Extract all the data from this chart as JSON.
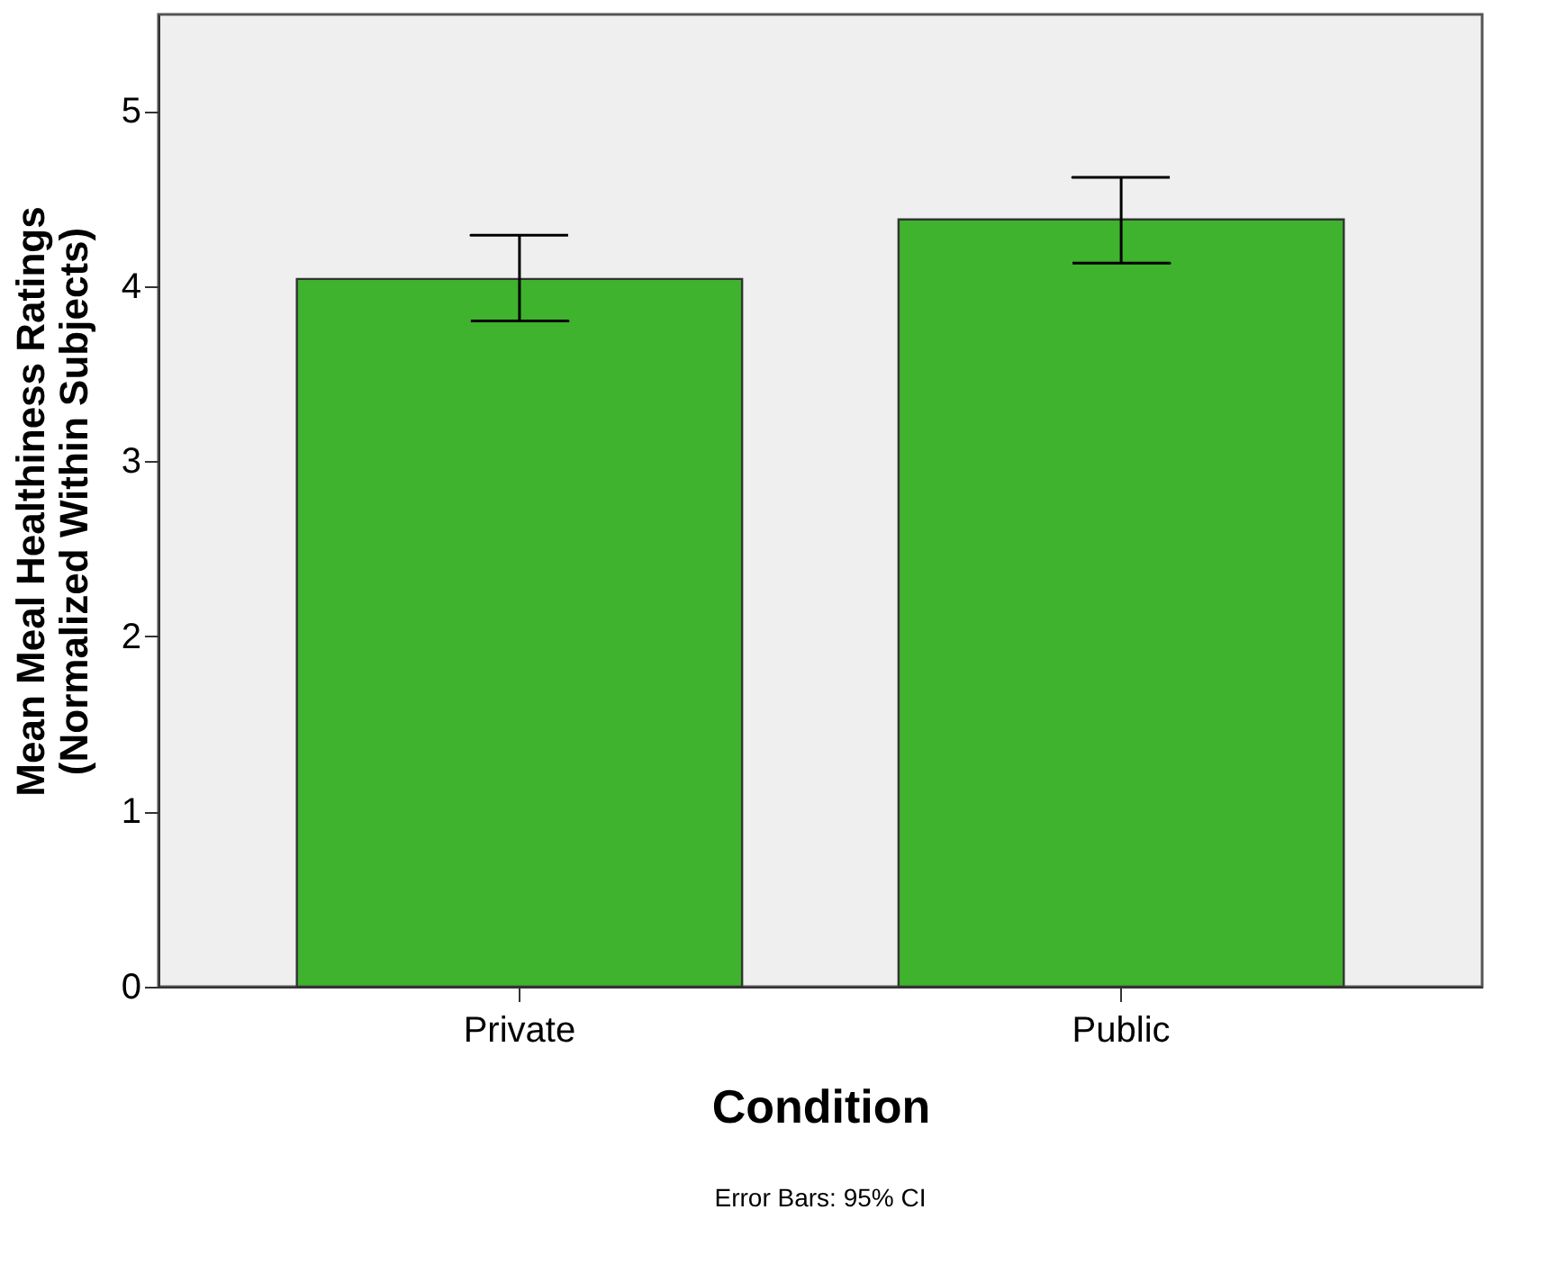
{
  "chart_data": {
    "type": "bar",
    "categories": [
      "Private",
      "Public"
    ],
    "values": [
      4.04,
      4.38
    ],
    "errors": [
      [
        3.8,
        4.29
      ],
      [
        4.13,
        4.62
      ]
    ],
    "color": "#3fb22e",
    "xlabel": "Condition",
    "ylabel": "Mean Meal Healthiness Ratings\n(Normalized Within Subjects)",
    "ylim": [
      0,
      5.55
    ],
    "yticks": [
      0,
      1,
      2,
      3,
      4,
      5
    ],
    "grid": false,
    "annotations": [
      "Error Bars: 95% CI"
    ]
  }
}
